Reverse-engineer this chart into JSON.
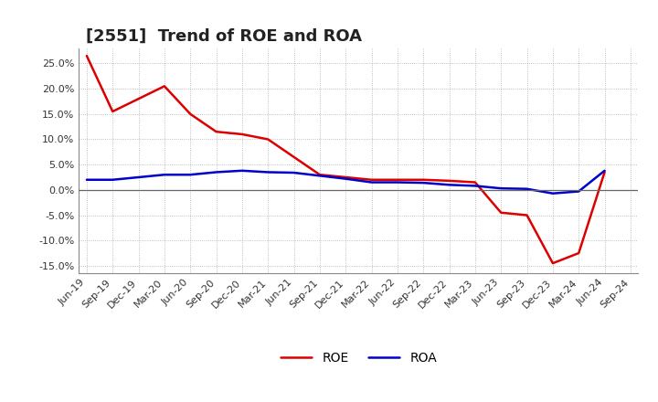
{
  "title": "[2551]  Trend of ROE and ROA",
  "x_labels": [
    "Jun-19",
    "Sep-19",
    "Dec-19",
    "Mar-20",
    "Jun-20",
    "Sep-20",
    "Dec-20",
    "Mar-21",
    "Jun-21",
    "Sep-21",
    "Dec-21",
    "Mar-22",
    "Jun-22",
    "Sep-22",
    "Dec-22",
    "Mar-23",
    "Jun-23",
    "Sep-23",
    "Dec-23",
    "Mar-24",
    "Jun-24",
    "Sep-24"
  ],
  "roe": [
    26.5,
    15.5,
    18.0,
    20.5,
    15.0,
    11.5,
    11.0,
    10.0,
    6.5,
    3.0,
    2.5,
    2.0,
    2.0,
    2.0,
    1.8,
    1.5,
    -4.5,
    -5.0,
    -14.5,
    -12.5,
    3.5,
    null
  ],
  "roa": [
    2.0,
    2.0,
    2.5,
    3.0,
    3.0,
    3.5,
    3.8,
    3.5,
    3.4,
    2.8,
    2.2,
    1.5,
    1.5,
    1.4,
    1.0,
    0.8,
    0.3,
    0.2,
    -0.7,
    -0.3,
    3.8,
    null
  ],
  "roe_color": "#dd0000",
  "roa_color": "#0000cc",
  "plot_bg_color": "#f0f0f0",
  "fig_bg_color": "#ffffff",
  "grid_color": "#999999",
  "zero_line_color": "#666666",
  "ylim": [
    -16.5,
    28.0
  ],
  "yticks": [
    -15.0,
    -10.0,
    -5.0,
    0.0,
    5.0,
    10.0,
    15.0,
    20.0,
    25.0
  ],
  "line_width": 1.8,
  "legend_roe": "ROE",
  "legend_roa": "ROA",
  "title_fontsize": 13,
  "tick_fontsize": 8,
  "legend_fontsize": 10,
  "title_color": "#222222"
}
